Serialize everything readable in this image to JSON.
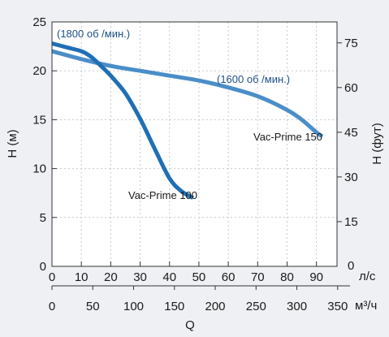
{
  "chart_data": {
    "type": "line",
    "left_axis": {
      "label": "H (м)",
      "ticks": [
        0,
        5,
        10,
        15,
        20,
        25
      ],
      "ylim": [
        0,
        25
      ]
    },
    "right_axis": {
      "label": "H (фут)",
      "ticks": [
        15,
        30,
        45,
        60,
        75
      ],
      "ylim": [
        0,
        82.02
      ]
    },
    "x_axis_primary": {
      "unit": "л/с",
      "ticks": [
        0,
        10,
        20,
        30,
        40,
        50,
        60,
        70,
        80,
        90
      ],
      "xlim": [
        0,
        97
      ]
    },
    "x_axis_secondary": {
      "unit": "м³/ч",
      "ticks": [
        0,
        50,
        100,
        150,
        200,
        250,
        300,
        350
      ]
    },
    "xlabel": "Q",
    "grid": true,
    "series": [
      {
        "name": "Vac-Prime 100",
        "speed_label": "(1800 об /мин.)",
        "color": "#1f6fb5",
        "x": [
          0,
          5,
          10,
          13,
          16,
          20,
          25,
          30,
          35,
          40,
          44,
          48
        ],
        "y": [
          22.8,
          22.4,
          22.0,
          21.5,
          20.7,
          19.5,
          17.7,
          15.1,
          12.0,
          9.0,
          7.7,
          7.0
        ]
      },
      {
        "name": "Vac-Prime 150",
        "speed_label": "(1600 об /мин.)",
        "color": "#4a8ec8",
        "x": [
          0,
          10,
          20,
          30,
          40,
          50,
          60,
          70,
          80,
          85,
          90,
          92
        ],
        "y": [
          22.0,
          21.2,
          20.5,
          20.0,
          19.5,
          19.0,
          18.3,
          17.4,
          16.0,
          15.0,
          13.7,
          13.3
        ]
      }
    ]
  }
}
